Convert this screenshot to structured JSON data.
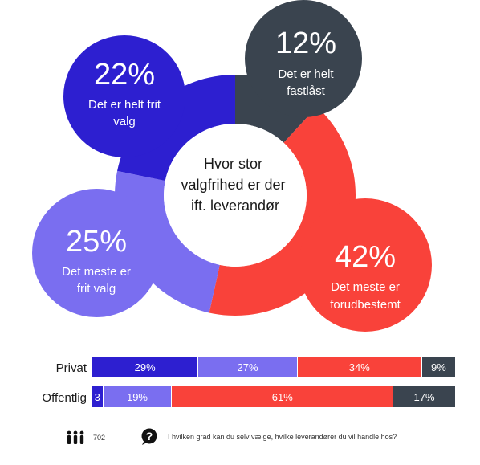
{
  "colors": {
    "c1": "#2d1fd0",
    "c2": "#7a6ef0",
    "c3": "#f9423a",
    "c4": "#3a444f"
  },
  "chart_data": [
    {
      "type": "pie",
      "title": "Hvor stor valgfrihed er der ift. leverandør",
      "center_lines": [
        "Hvor stor",
        "valgfrihed er der",
        "ift. leverandør"
      ],
      "segments": [
        {
          "pct": "22%",
          "value": 22,
          "label_lines": [
            "Det er helt frit",
            "valg"
          ],
          "color": "#2d1fd0"
        },
        {
          "pct": "12%",
          "value": 12,
          "label_lines": [
            "Det er helt",
            "fastlåst"
          ],
          "color": "#3a444f"
        },
        {
          "pct": "42%",
          "value": 42,
          "label_lines": [
            "Det meste er",
            "forudbestemt"
          ],
          "color": "#f9423a"
        },
        {
          "pct": "25%",
          "value": 25,
          "label_lines": [
            "Det meste er",
            "frit valg"
          ],
          "color": "#7a6ef0"
        }
      ]
    },
    {
      "type": "bar",
      "orientation": "horizontal-stacked",
      "rows": [
        {
          "name": "Privat",
          "values": [
            29,
            27,
            34,
            9
          ],
          "labels": [
            "29%",
            "27%",
            "34%",
            "9%"
          ]
        },
        {
          "name": "Offentlig",
          "values": [
            3,
            19,
            61,
            17
          ],
          "labels": [
            "3",
            "19%",
            "61%",
            "17%"
          ]
        }
      ],
      "series_colors": [
        "#2d1fd0",
        "#7a6ef0",
        "#f9423a",
        "#3a444f"
      ]
    }
  ],
  "footer": {
    "count": "702",
    "question": "I hvilken  grad kan du selv vælge,  hvilke leverandører  du vil handle hos?"
  }
}
